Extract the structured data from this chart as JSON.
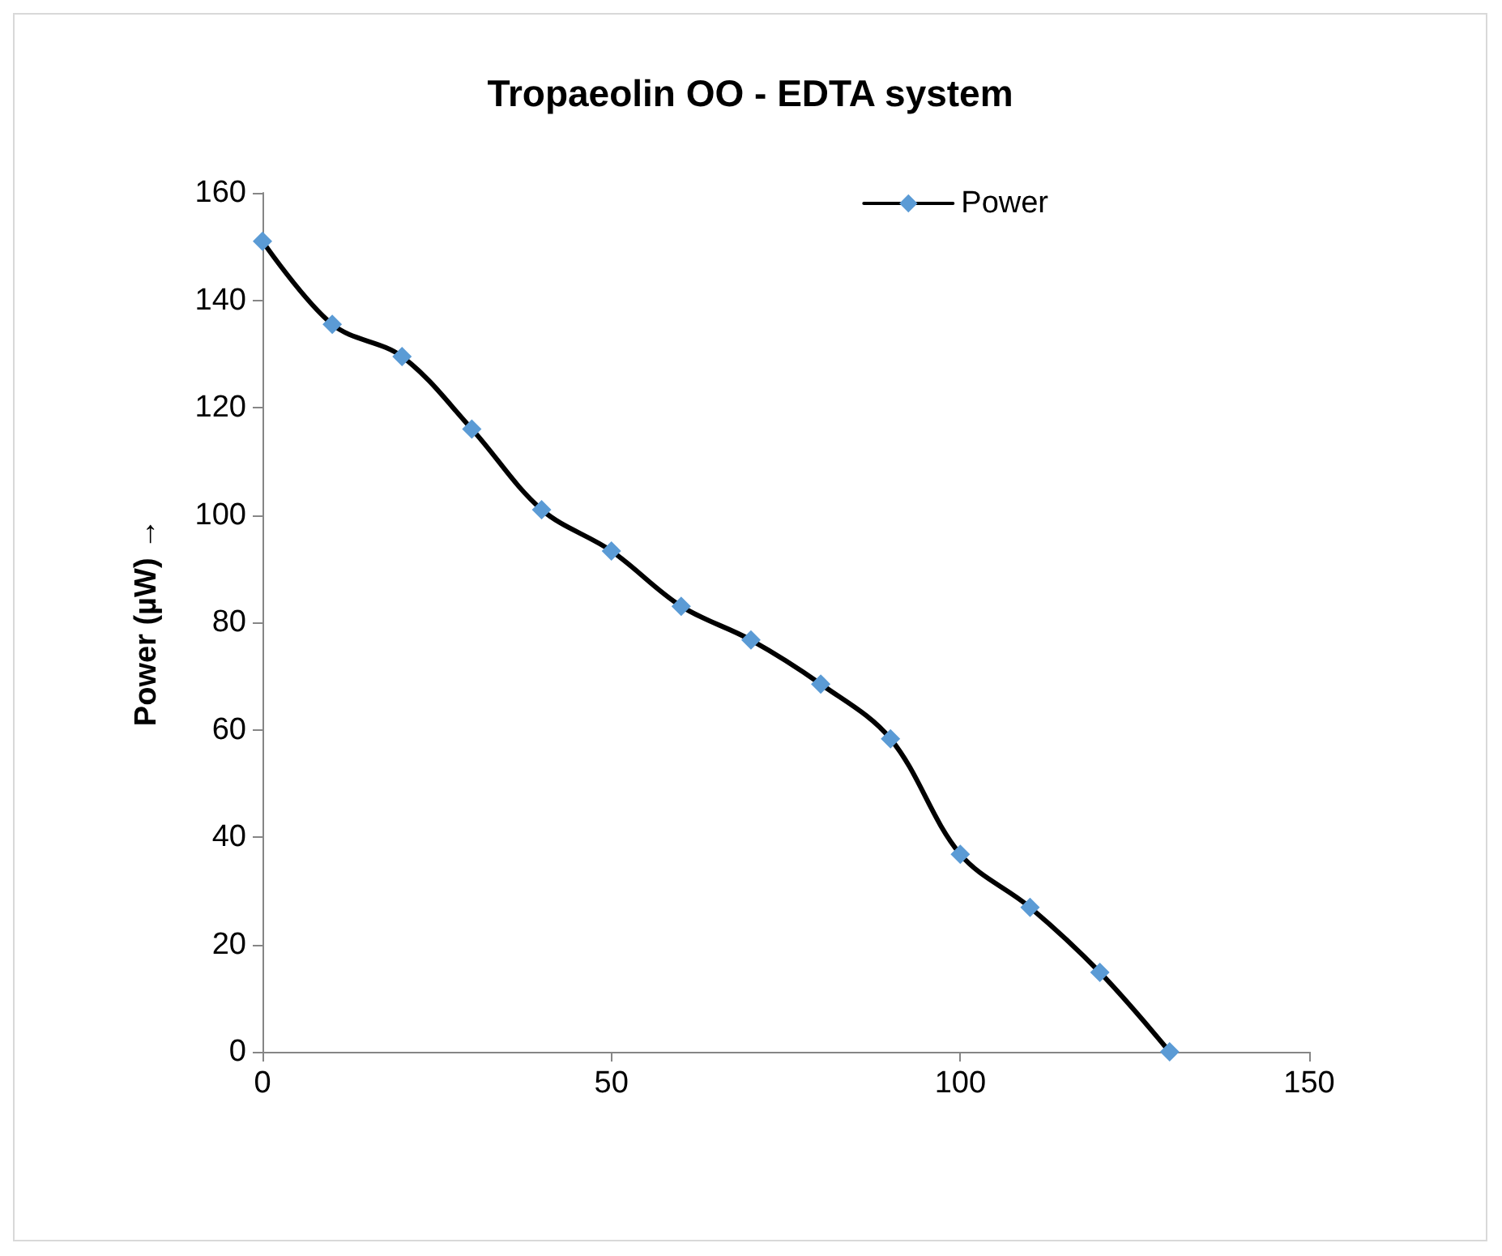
{
  "chart_data": {
    "type": "line",
    "title": "Tropaeolin OO - EDTA system",
    "ylabel": "Power (µW) →",
    "x": [
      0,
      10,
      20,
      30,
      40,
      50,
      60,
      70,
      80,
      90,
      100,
      110,
      120,
      130
    ],
    "series": [
      {
        "name": "Power",
        "color": "#000000",
        "values": [
          151,
          135.5,
          129.5,
          116,
          101,
          93.3,
          83,
          76.7,
          68.5,
          58.3,
          36.8,
          26.9,
          14.8,
          0
        ]
      }
    ],
    "xlim": [
      0,
      150
    ],
    "xticks": [
      0,
      50,
      100,
      150
    ],
    "ylim": [
      0,
      160
    ],
    "yticks": [
      0,
      20,
      40,
      60,
      80,
      100,
      120,
      140,
      160
    ],
    "grid": false,
    "legend": "top right",
    "marker": "diamond",
    "line_style": "solid"
  }
}
